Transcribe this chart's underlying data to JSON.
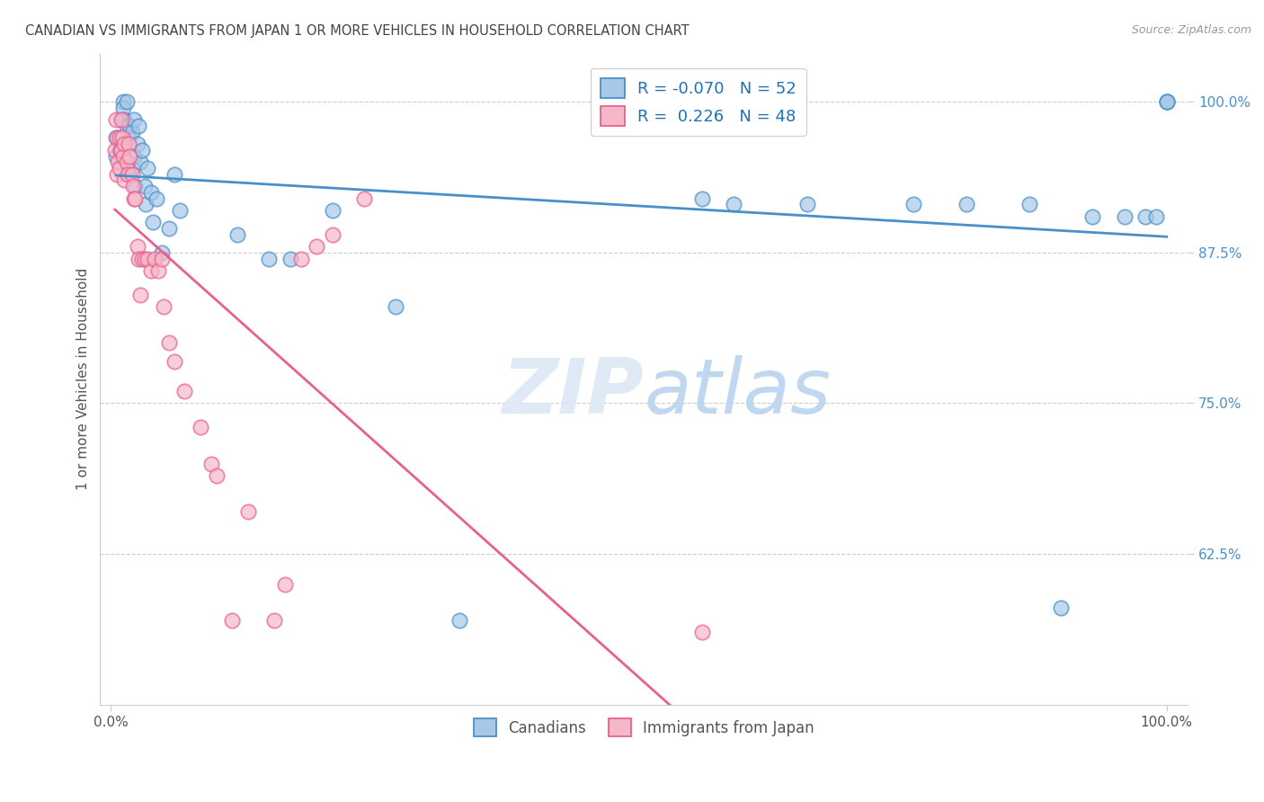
{
  "title": "CANADIAN VS IMMIGRANTS FROM JAPAN 1 OR MORE VEHICLES IN HOUSEHOLD CORRELATION CHART",
  "source": "Source: ZipAtlas.com",
  "ylabel": "1 or more Vehicles in Household",
  "r_canadian": -0.07,
  "n_canadian": 52,
  "r_japan": 0.226,
  "n_japan": 48,
  "legend_labels": [
    "Canadians",
    "Immigrants from Japan"
  ],
  "blue_fill": "#a8c8e8",
  "pink_fill": "#f4b8c8",
  "blue_edge": "#4a90c8",
  "pink_edge": "#e86090",
  "blue_line": "#4a90c8",
  "pink_line": "#e86090",
  "background_color": "#ffffff",
  "y_ticks": [
    0.625,
    0.75,
    0.875,
    1.0
  ],
  "y_tick_labels": [
    "62.5%",
    "75.0%",
    "87.5%",
    "100.0%"
  ],
  "canadians_x": [
    0.005,
    0.005,
    0.008,
    0.01,
    0.01,
    0.012,
    0.012,
    0.013,
    0.015,
    0.015,
    0.017,
    0.018,
    0.018,
    0.02,
    0.02,
    0.022,
    0.022,
    0.023,
    0.025,
    0.026,
    0.028,
    0.03,
    0.032,
    0.033,
    0.035,
    0.038,
    0.04,
    0.043,
    0.048,
    0.055,
    0.06,
    0.065,
    0.12,
    0.15,
    0.17,
    0.21,
    0.27,
    0.33,
    0.56,
    0.59,
    0.66,
    0.76,
    0.81,
    0.87,
    0.9,
    0.93,
    0.96,
    0.98,
    0.99,
    1.0,
    1.0,
    1.0
  ],
  "canadians_y": [
    0.97,
    0.955,
    0.96,
    0.985,
    0.965,
    1.0,
    0.995,
    0.985,
    0.98,
    1.0,
    0.97,
    0.98,
    0.94,
    0.975,
    0.945,
    0.985,
    0.955,
    0.93,
    0.965,
    0.98,
    0.95,
    0.96,
    0.93,
    0.915,
    0.945,
    0.925,
    0.9,
    0.92,
    0.875,
    0.895,
    0.94,
    0.91,
    0.89,
    0.87,
    0.87,
    0.91,
    0.83,
    0.57,
    0.92,
    0.915,
    0.915,
    0.915,
    0.915,
    0.915,
    0.58,
    0.905,
    0.905,
    0.905,
    0.905,
    1.0,
    1.0,
    1.0
  ],
  "japan_x": [
    0.004,
    0.005,
    0.006,
    0.006,
    0.007,
    0.008,
    0.008,
    0.009,
    0.01,
    0.01,
    0.011,
    0.012,
    0.013,
    0.013,
    0.015,
    0.016,
    0.017,
    0.018,
    0.02,
    0.021,
    0.022,
    0.023,
    0.025,
    0.026,
    0.028,
    0.03,
    0.032,
    0.035,
    0.038,
    0.042,
    0.045,
    0.048,
    0.05,
    0.055,
    0.06,
    0.07,
    0.085,
    0.095,
    0.1,
    0.115,
    0.13,
    0.155,
    0.165,
    0.18,
    0.195,
    0.21,
    0.24,
    0.56
  ],
  "japan_y": [
    0.96,
    0.985,
    0.97,
    0.94,
    0.95,
    0.97,
    0.945,
    0.96,
    0.985,
    0.96,
    0.97,
    0.955,
    0.965,
    0.935,
    0.95,
    0.94,
    0.965,
    0.955,
    0.94,
    0.93,
    0.92,
    0.92,
    0.88,
    0.87,
    0.84,
    0.87,
    0.87,
    0.87,
    0.86,
    0.87,
    0.86,
    0.87,
    0.83,
    0.8,
    0.785,
    0.76,
    0.73,
    0.7,
    0.69,
    0.57,
    0.66,
    0.57,
    0.6,
    0.87,
    0.88,
    0.89,
    0.92,
    0.56
  ]
}
